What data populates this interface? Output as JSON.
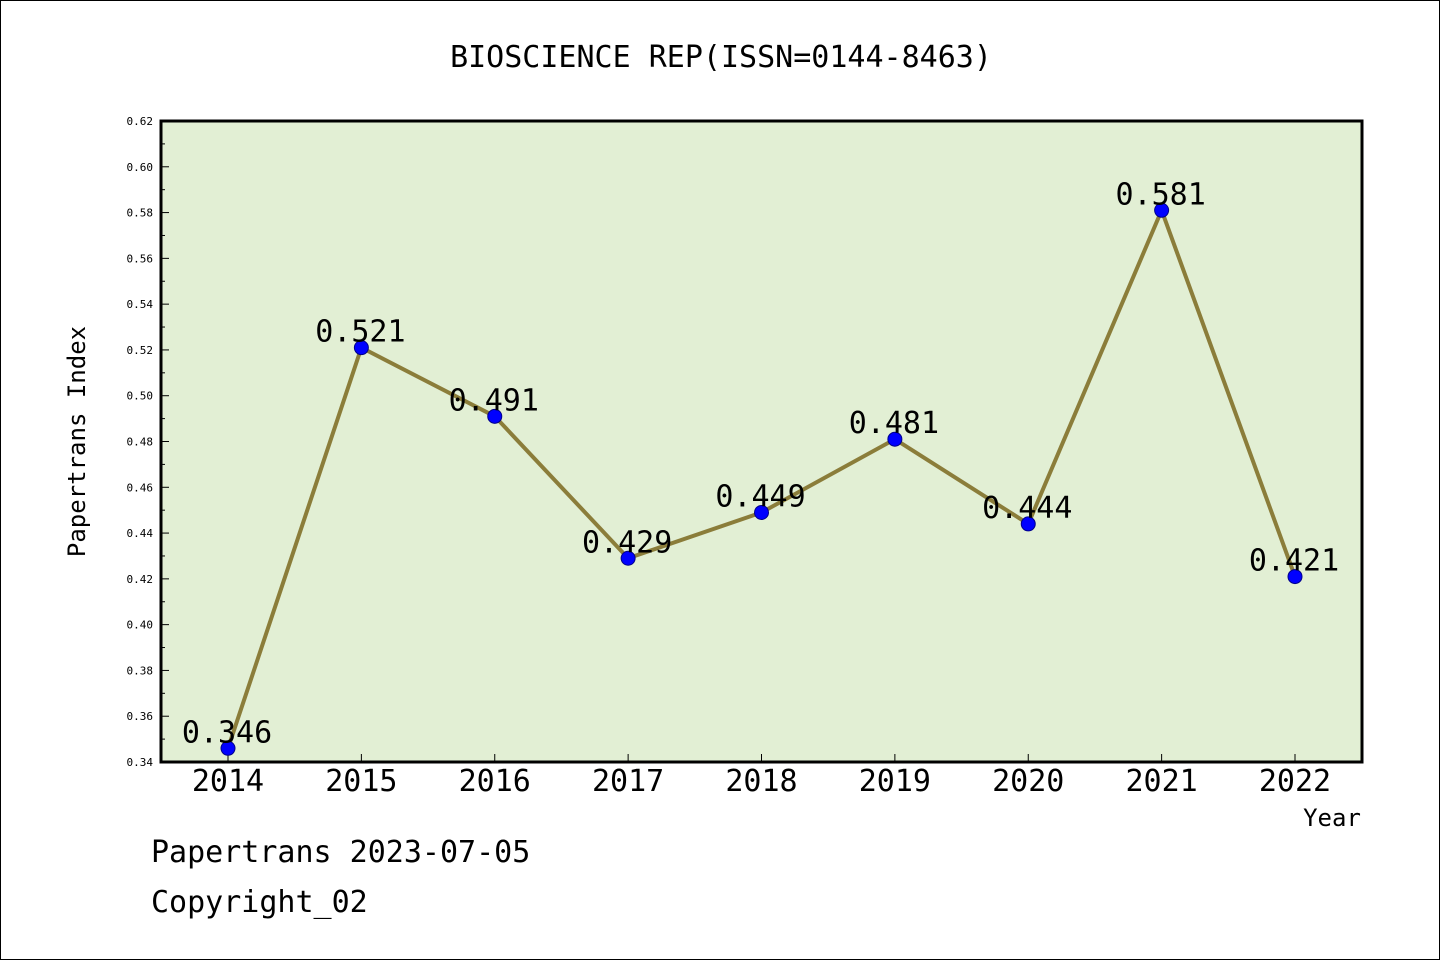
{
  "chart_data": {
    "type": "line",
    "title": "BIOSCIENCE REP(ISSN=0144-8463)",
    "xlabel": "Year",
    "ylabel": "Papertrans Index",
    "categories": [
      "2014",
      "2015",
      "2016",
      "2017",
      "2018",
      "2019",
      "2020",
      "2021",
      "2022"
    ],
    "series": [
      {
        "values": [
          0.346,
          0.521,
          0.491,
          0.429,
          0.449,
          0.481,
          0.444,
          0.581,
          0.421
        ],
        "data_labels": [
          "0.346",
          "0.521",
          "0.491",
          "0.429",
          "0.449",
          "0.481",
          "0.444",
          "0.581",
          "0.421"
        ]
      }
    ],
    "ylim": [
      0.34,
      0.62
    ],
    "yticks": [
      "0.34",
      "0.36",
      "0.38",
      "0.40",
      "0.42",
      "0.44",
      "0.46",
      "0.48",
      "0.50",
      "0.52",
      "0.54",
      "0.56",
      "0.58",
      "0.60",
      "0.62"
    ],
    "grid": false,
    "legend": "none",
    "colors": {
      "plot_background": "#e2efd4",
      "line": "#8b7d3a",
      "marker": "#0000ff"
    }
  },
  "footer": {
    "line1": "Papertrans 2023-07-05",
    "line2": "Copyright_02"
  }
}
